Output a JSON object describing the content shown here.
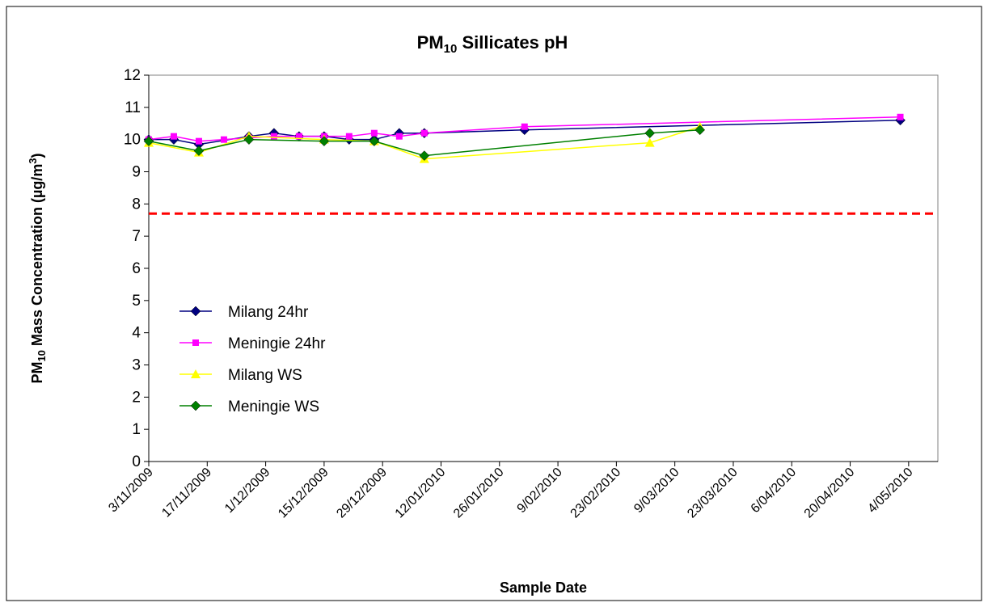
{
  "chart_data": {
    "type": "line",
    "title": [
      "PM",
      "10",
      " Sillicates pH"
    ],
    "x_label": "Sample Date",
    "y_label": [
      "PM",
      "10",
      " Mass Concentration (µg/m",
      "3",
      ")"
    ],
    "xlim": [
      "3/11/2009",
      "11/05/2010"
    ],
    "xticks": [
      "3/11/2009",
      "17/11/2009",
      "1/12/2009",
      "15/12/2009",
      "29/12/2009",
      "12/01/2010",
      "26/01/2010",
      "9/02/2010",
      "23/02/2010",
      "9/03/2010",
      "23/03/2010",
      "6/04/2010",
      "20/04/2010",
      "4/05/2010"
    ],
    "ylim": [
      0,
      12
    ],
    "yticks": [
      0,
      1,
      2,
      3,
      4,
      5,
      6,
      7,
      8,
      9,
      10,
      11,
      12
    ],
    "reference_line": {
      "value": 7.7,
      "color": "#ff0000"
    },
    "series": [
      {
        "name": "Milang 24hr",
        "color": "#000080",
        "marker": "diamond",
        "x": [
          "3/11/2009",
          "9/11/2009",
          "15/11/2009",
          "27/11/2009",
          "3/12/2009",
          "9/12/2009",
          "15/12/2009",
          "21/12/2009",
          "27/12/2009",
          "2/01/2010",
          "8/01/2010",
          "1/02/2010",
          "2/05/2010"
        ],
        "values": [
          10.0,
          10.0,
          9.85,
          10.1,
          10.2,
          10.1,
          10.1,
          10.0,
          10.0,
          10.2,
          10.2,
          10.3,
          10.6
        ]
      },
      {
        "name": "Meningie 24hr",
        "color": "#ff00ff",
        "marker": "square",
        "x": [
          "3/11/2009",
          "9/11/2009",
          "15/11/2009",
          "21/11/2009",
          "27/11/2009",
          "3/12/2009",
          "9/12/2009",
          "15/12/2009",
          "21/12/2009",
          "27/12/2009",
          "2/01/2010",
          "8/01/2010",
          "1/02/2010",
          "2/05/2010"
        ],
        "values": [
          10.0,
          10.1,
          9.95,
          10.0,
          10.05,
          10.1,
          10.1,
          10.1,
          10.1,
          10.2,
          10.1,
          10.2,
          10.4,
          10.7
        ]
      },
      {
        "name": "Milang WS",
        "color": "#ffff00",
        "marker": "triangle",
        "x": [
          "3/11/2009",
          "15/11/2009",
          "27/11/2009",
          "15/12/2009",
          "27/12/2009",
          "8/01/2010",
          "3/03/2010",
          "15/03/2010"
        ],
        "values": [
          9.9,
          9.6,
          10.1,
          10.0,
          9.95,
          9.4,
          9.9,
          10.4
        ]
      },
      {
        "name": "Meningie WS",
        "color": "#008000",
        "marker": "diamond",
        "x": [
          "3/11/2009",
          "15/11/2009",
          "27/11/2009",
          "15/12/2009",
          "27/12/2009",
          "8/01/2010",
          "3/03/2010",
          "15/03/2010"
        ],
        "values": [
          9.95,
          9.65,
          10.0,
          9.95,
          9.95,
          9.5,
          10.2,
          10.3
        ]
      }
    ]
  }
}
